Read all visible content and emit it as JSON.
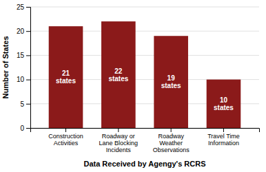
{
  "chart_data": {
    "type": "bar",
    "categories": [
      "Construction\nActivities",
      "Roadway or\nLane Blocking\nIncidents",
      "Roadway\nWeather\nObservations",
      "Travel Time\nInformation"
    ],
    "values": [
      21,
      22,
      19,
      10
    ],
    "value_labels": [
      "21\nstates",
      "22\nstates",
      "19\nstates",
      "10\nstates"
    ],
    "color": "#8B1A1A",
    "xlabel": "Data Received by Agengy's RCRS",
    "ylabel": "Number of States",
    "ylim": [
      0,
      25
    ],
    "yticks": [
      0,
      5,
      10,
      15,
      20,
      25
    ],
    "grid": true
  }
}
